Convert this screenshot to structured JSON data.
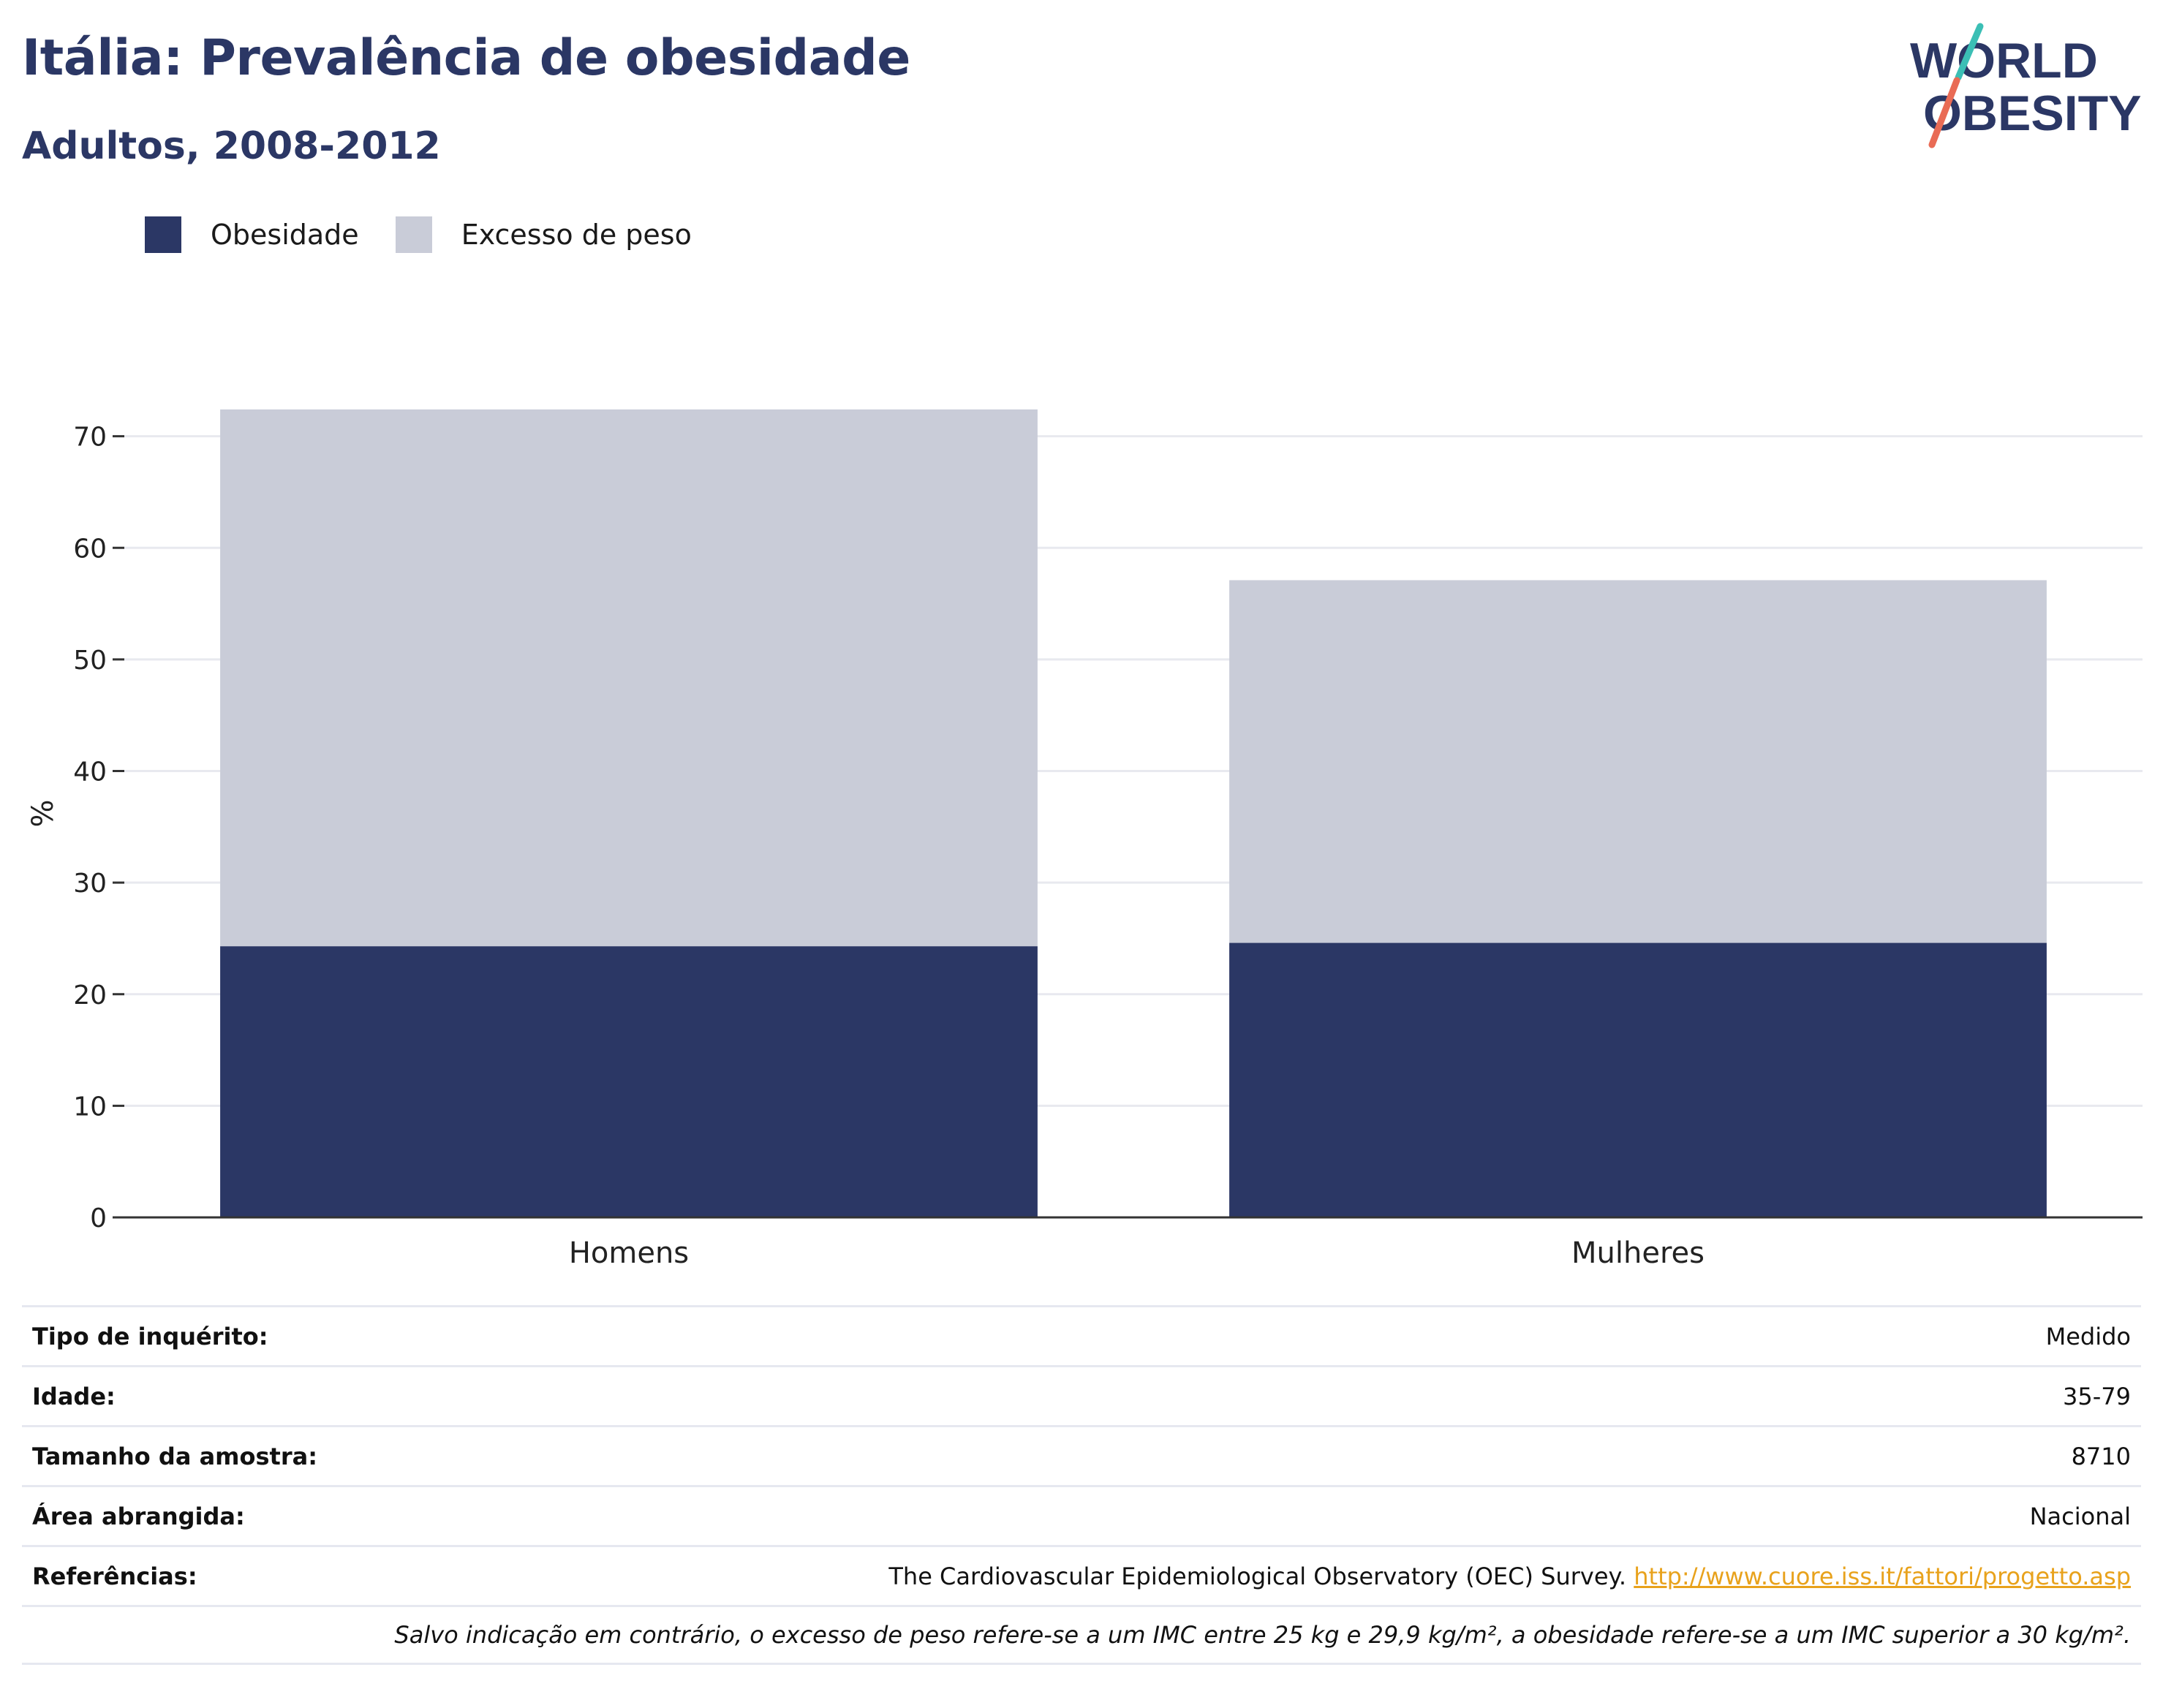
{
  "title": "Itália: Prevalência de obesidade",
  "subtitle": "Adultos, 2008-2012",
  "logo": {
    "line1": "WORLD",
    "line2": "OBESITY"
  },
  "colors": {
    "obesity": "#2b3765",
    "overweight": "#c9ccd8",
    "title": "#2b3765",
    "link": "#e8a21c"
  },
  "chart_data": {
    "type": "bar",
    "stacked": true,
    "categories": [
      "Homens",
      "Mulheres"
    ],
    "series": [
      {
        "name": "Obesidade",
        "values": [
          24.3,
          24.6
        ]
      },
      {
        "name": "Excesso de peso",
        "values": [
          48.1,
          32.5
        ]
      }
    ],
    "ylabel": "%",
    "xlabel": "",
    "ylim": [
      0,
      72.4
    ],
    "yticks": [
      0,
      10,
      20,
      30,
      40,
      50,
      60,
      70
    ],
    "legend_position": "top-left",
    "grid": true
  },
  "meta": {
    "survey_type_label": "Tipo de inquérito:",
    "survey_type_value": "Medido",
    "age_label": "Idade:",
    "age_value": "35-79",
    "sample_label": "Tamanho da amostra:",
    "sample_value": "8710",
    "area_label": "Área abrangida:",
    "area_value": "Nacional",
    "references_label": "Referências:",
    "references_text": "The Cardiovascular Epidemiological Observatory (OEC) Survey.",
    "references_link": "http://www.cuore.iss.it/fattori/progetto.asp",
    "note": "Salvo indicação em contrário, o excesso de peso refere-se a um IMC entre 25 kg e 29,9 kg/m², a obesidade refere-se a um IMC superior a 30 kg/m²."
  }
}
